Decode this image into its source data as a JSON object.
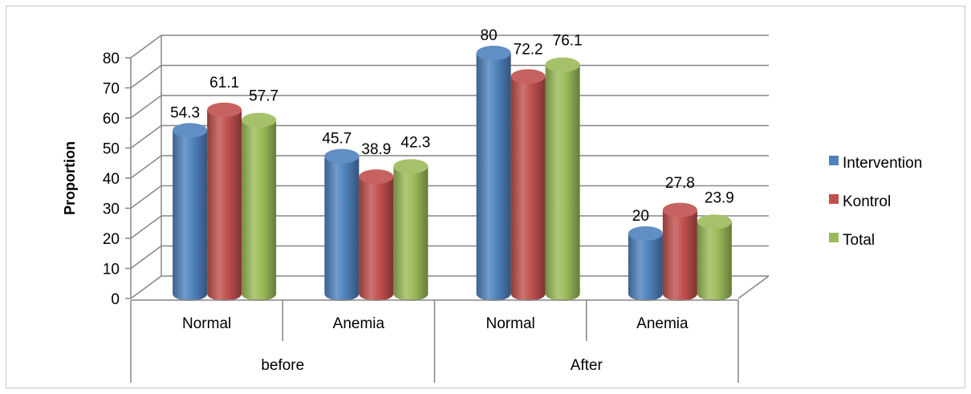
{
  "chart_data": {
    "type": "bar",
    "title": "",
    "xlabel": "",
    "ylabel": "Proportion",
    "ylim": [
      0,
      80
    ],
    "yticks": [
      0,
      10,
      20,
      30,
      40,
      50,
      60,
      70,
      80
    ],
    "grid": true,
    "legend_position": "right",
    "groups": [
      {
        "label": "before",
        "categories": [
          "Normal",
          "Anemia"
        ]
      },
      {
        "label": "After",
        "categories": [
          "Normal",
          "Anemia"
        ]
      }
    ],
    "categories": [
      "Normal",
      "Anemia",
      "Normal",
      "Anemia"
    ],
    "series": [
      {
        "name": "Intervention",
        "color": "#4F81BD",
        "values": [
          54.3,
          45.7,
          80,
          20
        ],
        "labels": [
          "54.3",
          "45.7",
          "80",
          "20"
        ]
      },
      {
        "name": "Kontrol",
        "color": "#C0504D",
        "values": [
          61.1,
          38.9,
          72.2,
          27.8
        ],
        "labels": [
          "61.1",
          "38.9",
          "72.2",
          "27.8"
        ]
      },
      {
        "name": "Total",
        "color": "#9BBB59",
        "values": [
          57.7,
          42.3,
          76.1,
          23.9
        ],
        "labels": [
          "57.7",
          "42.3",
          "76.1",
          "23.9"
        ]
      }
    ]
  }
}
